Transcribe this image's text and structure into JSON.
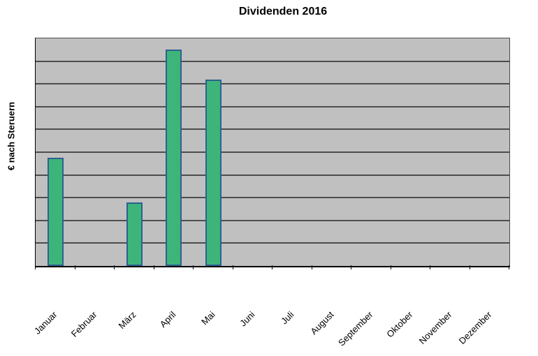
{
  "chart_data": {
    "type": "bar",
    "title": "Dividenden 2016",
    "ylabel": "€ nach Steruern",
    "xlabel": "",
    "categories": [
      "Januar",
      "Februar",
      "März",
      "April",
      "Mai",
      "Juni",
      "Juli",
      "August",
      "September",
      "Oktober",
      "November",
      "Dezember"
    ],
    "values": [
      4.75,
      0,
      2.8,
      9.5,
      8.2,
      0,
      0,
      0,
      0,
      0,
      0,
      0
    ],
    "ylim": [
      0,
      10
    ],
    "y_tick_labels": "none",
    "gridlines": "horizontal",
    "legend": "none",
    "colors": {
      "bar_fill": "#3db57a",
      "bar_border": "#2e6090",
      "plot_background": "#c0c0c0",
      "gridline": "#4d4d4d",
      "axis": "#000000",
      "text": "#000000",
      "canvas_background": "#ffffff"
    }
  }
}
